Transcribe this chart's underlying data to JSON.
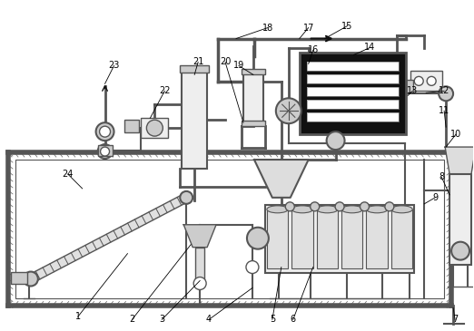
{
  "lc": "#555555",
  "dc": "#111111",
  "wh": "#ffffff",
  "bk": "#000000",
  "lg": "#cccccc",
  "mg": "#999999",
  "bg": "#f5f5f5"
}
